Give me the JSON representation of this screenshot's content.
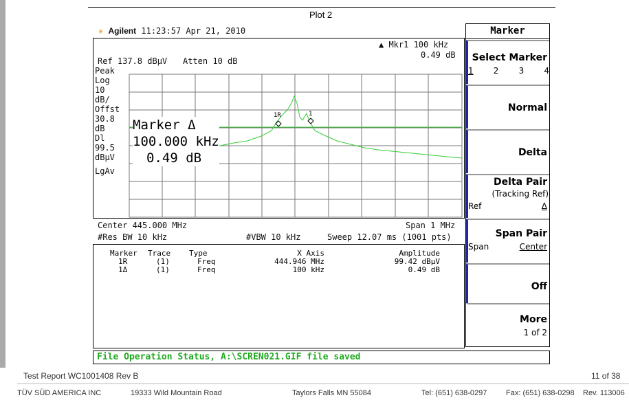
{
  "screen": {
    "plot_title": "Plot 2",
    "brand": "Agilent",
    "time": "11:23:57",
    "date": "Apr 21, 2010",
    "marker_readout": "Mkr1  100 kHz",
    "marker_value": "0.49 dB",
    "ref": "Ref 137.8 dBµV",
    "atten": "Atten 10 dB",
    "left_labels": [
      "Peak",
      "Log",
      "10",
      "dB/",
      "Offst",
      "30.8",
      "dB",
      "Dl",
      "99.5",
      "dBµV",
      "LgAv"
    ],
    "overlay": [
      "Marker Δ",
      "100.000 kHz",
      "0.49 dB"
    ],
    "trace_markers": [
      "1R",
      "1"
    ],
    "center": "Center 445.000 MHz",
    "span": "Span 1 MHz",
    "rbw": "#Res BW 10 kHz",
    "vbw": "#VBW 10 kHz",
    "sweep": "Sweep 12.07 ms (1001 pts)",
    "table": {
      "headers": [
        "Marker",
        "Trace",
        "Type",
        "X Axis",
        "Amplitude"
      ],
      "rows": [
        [
          "1R",
          "(1)",
          "Freq",
          "444.946 MHz",
          "99.42 dBµV"
        ],
        [
          "1Δ",
          "(1)",
          "Freq",
          "100 kHz",
          "0.49 dB"
        ]
      ]
    },
    "status": "File Operation Status, A:\\SCREN021.GIF file saved"
  },
  "softkeys": {
    "title": "Marker",
    "select": "Select Marker",
    "select_options": [
      "1",
      "2",
      "3",
      "4"
    ],
    "normal": "Normal",
    "delta": "Delta",
    "delta_pair": "Delta Pair",
    "tracking": "(Tracking Ref)",
    "ref": "Ref",
    "ref_delta": "Δ",
    "span_pair": "Span Pair",
    "span": "Span",
    "span_center": "Center",
    "off": "Off",
    "more": "More",
    "more_page": "1 of 2"
  },
  "footer": {
    "report": "Test Report WC1001408 Rev B",
    "page": "11 of 38",
    "company": "TÜV SÜD AMERICA INC",
    "address": "19333 Wild Mountain Road",
    "city": "Taylors Falls MN 55084",
    "tel": "Tel: (651) 638-0297",
    "fax": "Fax: (651) 638-0298",
    "rev": "Rev. 113006"
  }
}
